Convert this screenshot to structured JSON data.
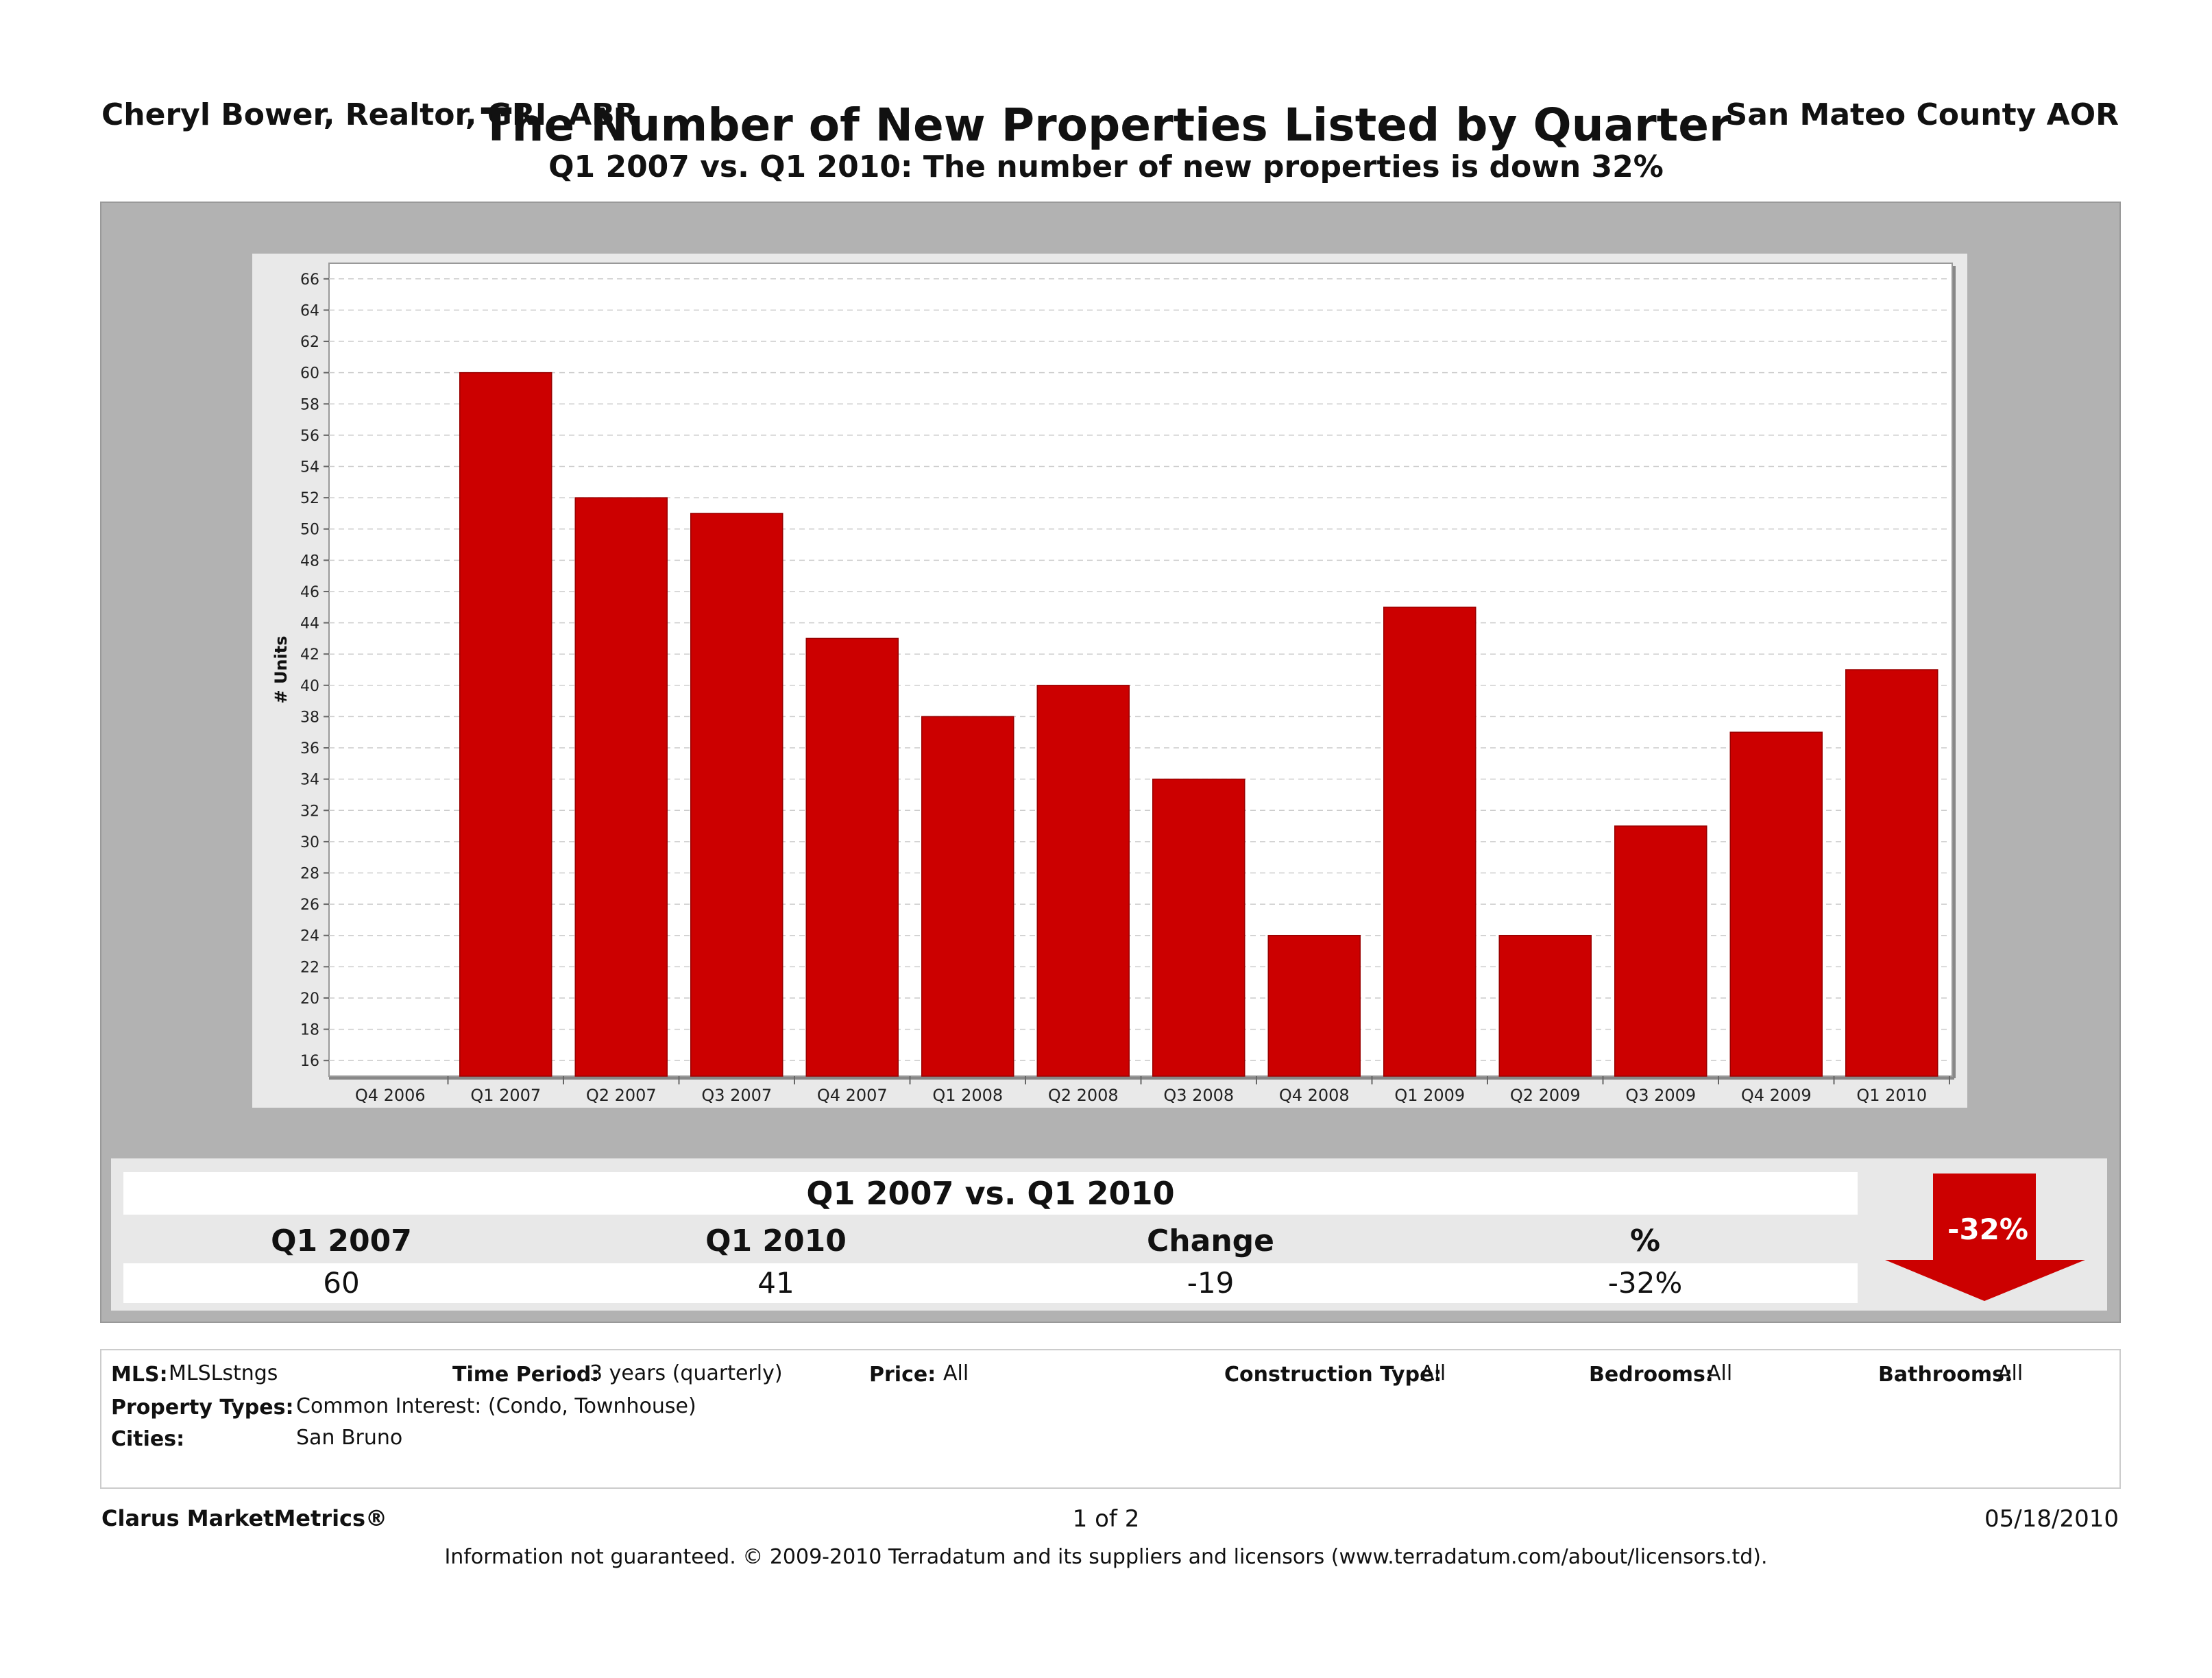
{
  "header": {
    "author": "Cheryl Bower, Realtor, GRI, ABR",
    "agency": "San Mateo County AOR"
  },
  "chart_data": {
    "type": "bar",
    "title": "The Number of New Properties Listed by Quarter",
    "subtitle": "Q1 2007 vs. Q1 2010:  The number of new properties is down 32%",
    "xlabel": "",
    "ylabel": "# Units",
    "ylim": [
      15,
      67
    ],
    "yticks": [
      16,
      18,
      20,
      22,
      24,
      26,
      28,
      30,
      32,
      34,
      36,
      38,
      40,
      42,
      44,
      46,
      48,
      50,
      52,
      54,
      56,
      58,
      60,
      62,
      64,
      66
    ],
    "grid": true,
    "categories": [
      "Q4 2006",
      "Q1 2007",
      "Q2 2007",
      "Q3 2007",
      "Q4 2007",
      "Q1 2008",
      "Q2 2008",
      "Q3 2008",
      "Q4 2008",
      "Q1 2009",
      "Q2 2009",
      "Q3 2009",
      "Q4 2009",
      "Q1 2010"
    ],
    "values": [
      null,
      60,
      52,
      51,
      43,
      38,
      40,
      34,
      24,
      45,
      24,
      31,
      37,
      41
    ],
    "bar_color": "#cc0000"
  },
  "summary": {
    "title": "Q1 2007 vs. Q1 2010",
    "headers": [
      "Q1 2007",
      "Q1 2010",
      "Change",
      "%"
    ],
    "values": [
      "60",
      "41",
      "-19",
      "-32%"
    ],
    "badge": "-32%",
    "arrow_color": "#cc0000"
  },
  "footer": {
    "mls_label": "MLS:",
    "mls_value": "MLSLstngs",
    "time_label": "Time Period:",
    "time_value": "3 years (quarterly)",
    "price_label": "Price:",
    "price_value": "All",
    "construction_label": "Construction Type:",
    "construction_value": "All",
    "bedrooms_label": "Bedrooms:",
    "bedrooms_value": "All",
    "bathrooms_label": "Bathrooms:",
    "bathrooms_value": "All",
    "ptypes_label": "Property Types:",
    "ptypes_value": "Common Interest: (Condo, Townhouse)",
    "cities_label": "Cities:",
    "cities_value": "San Bruno"
  },
  "bottom": {
    "brand": "Clarus MarketMetrics®",
    "page": "1 of 2",
    "date": "05/18/2010",
    "disclaimer": "Information not guaranteed.  © 2009-2010 Terradatum and its suppliers and licensors (www.terradatum.com/about/licensors.td)."
  }
}
